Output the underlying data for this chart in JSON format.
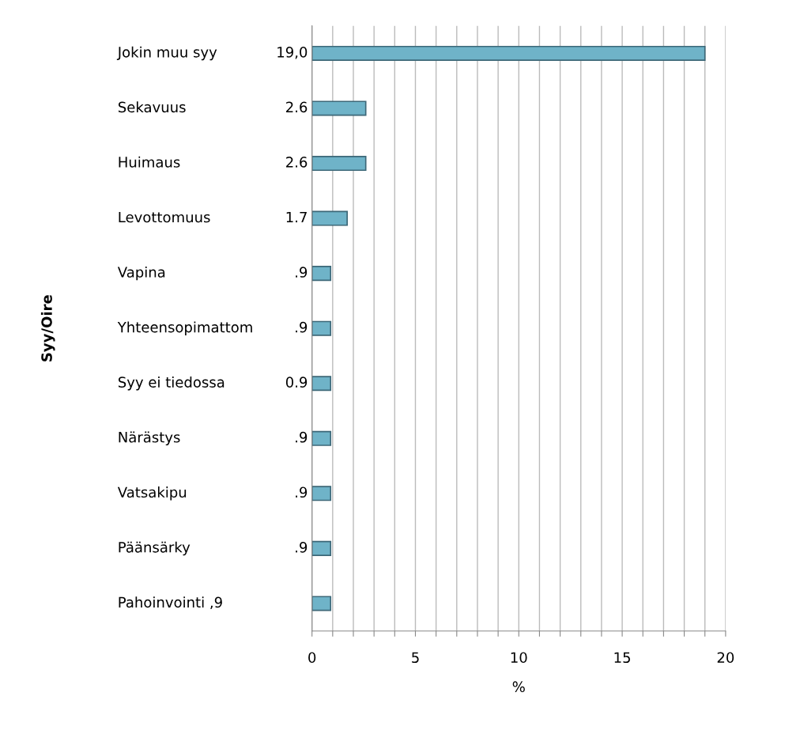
{
  "chart_data": {
    "type": "bar",
    "orientation": "horizontal",
    "ylabel": "Syy/Oire",
    "xlabel": "%",
    "categories": [
      "Jokin muu syy",
      "Sekavuus",
      "Huimaus",
      "Levottomuus",
      "Vapina",
      "Yhteensopimattom",
      "Syy ei tiedossa",
      "Närästys",
      "Vatsakipu",
      "Päänsärky",
      "Pahoinvointi ,9"
    ],
    "values": [
      19.0,
      2.6,
      2.6,
      1.7,
      0.9,
      0.9,
      0.9,
      0.9,
      0.9,
      0.9,
      0.9
    ],
    "value_labels": [
      "19,0",
      "2.6",
      "2.6",
      "1.7",
      ".9",
      ".9",
      "0.9",
      ".9",
      ".9",
      ".9",
      null
    ],
    "color": "#6fb3c8",
    "xlim": [
      0,
      20
    ],
    "xticks": [
      0,
      {
        "value": 1,
        "label": null
      },
      {
        "value": 2,
        "label": null
      },
      {
        "value": 3,
        "label": null
      },
      {
        "value": 4,
        "label": null
      },
      5,
      {
        "value": 6,
        "label": null
      },
      {
        "value": 7,
        "label": null
      },
      {
        "value": 8,
        "label": null
      },
      {
        "value": 9,
        "label": null
      },
      10,
      {
        "value": 11,
        "label": null
      },
      {
        "value": 12,
        "label": null
      },
      {
        "value": 13,
        "label": null
      },
      {
        "value": 14,
        "label": null
      },
      15,
      {
        "value": 16,
        "label": null
      },
      {
        "value": 17,
        "label": null
      },
      {
        "value": 18,
        "label": null
      },
      {
        "value": 19,
        "label": null
      },
      20
    ],
    "grid": "x"
  }
}
